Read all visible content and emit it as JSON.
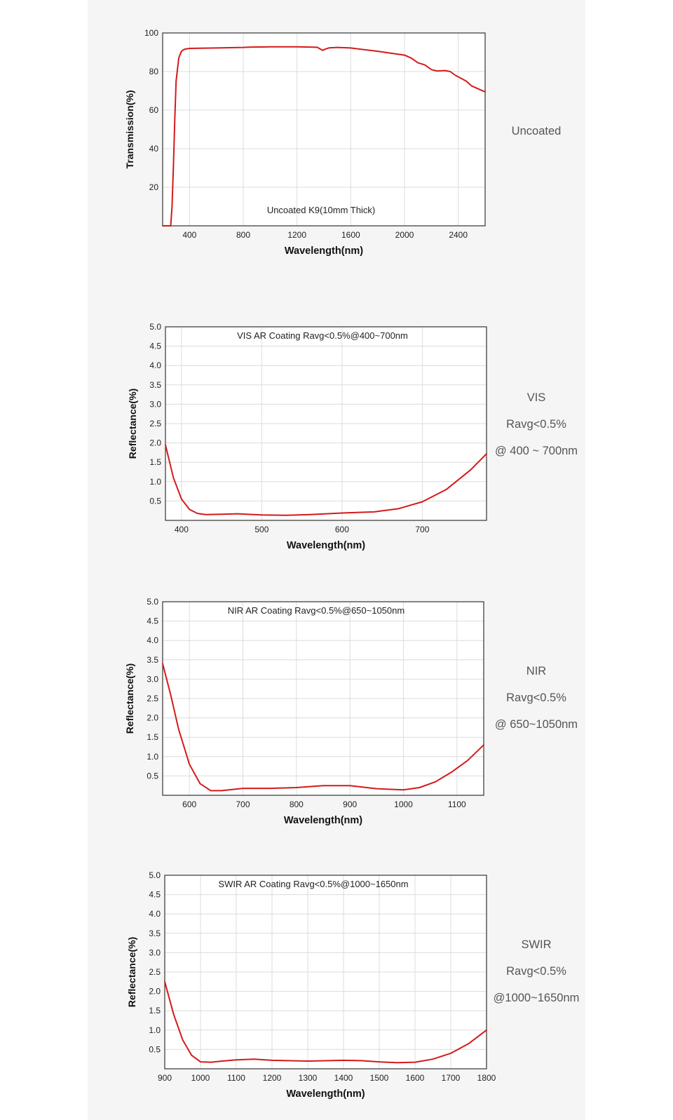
{
  "chart_data": [
    {
      "type": "line",
      "title": "Uncoated K9(10mm Thick)",
      "xlabel": "Wavelength(nm)",
      "ylabel": "Transmission(%)",
      "xlim": [
        200,
        2600
      ],
      "ylim": [
        0,
        100
      ],
      "xticks": [
        "400",
        "800",
        "1200",
        "1600",
        "2000",
        "2400"
      ],
      "yticks": [
        "20",
        "40",
        "60",
        "80",
        "100"
      ],
      "grid": true,
      "series_color": "#d41a1a",
      "side_lines": [
        "Uncoated"
      ],
      "x": [
        200,
        260,
        270,
        280,
        290,
        300,
        320,
        340,
        360,
        380,
        400,
        600,
        800,
        860,
        1000,
        1200,
        1350,
        1390,
        1410,
        1440,
        1500,
        1600,
        1800,
        2000,
        2050,
        2100,
        2150,
        2200,
        2240,
        2300,
        2340,
        2380,
        2420,
        2460,
        2500,
        2550,
        2600
      ],
      "y": [
        0,
        0,
        10,
        30,
        55,
        75,
        87,
        90.5,
        91.5,
        91.8,
        92,
        92.2,
        92.5,
        92.7,
        92.8,
        92.8,
        92.6,
        91,
        91.6,
        92.3,
        92.5,
        92.2,
        90.5,
        88.5,
        87,
        84.5,
        83.5,
        81,
        80.3,
        80.5,
        80,
        78,
        76.5,
        75,
        72.5,
        71,
        69.5
      ]
    },
    {
      "type": "line",
      "title": "VIS AR Coating Ravg<0.5%@400~700nm",
      "xlabel": "Wavelength(nm)",
      "ylabel": "Reflectance(%)",
      "xlim": [
        380,
        780
      ],
      "ylim": [
        0,
        5
      ],
      "xticks": [
        "400",
        "500",
        "600",
        "700"
      ],
      "yticks": [
        "0.5",
        "1.0",
        "1.5",
        "2.0",
        "2.5",
        "3.0",
        "3.5",
        "4.0",
        "4.5",
        "5.0"
      ],
      "grid": true,
      "series_color": "#d41a1a",
      "side_lines": [
        "VIS",
        "Ravg<0.5%",
        "@ 400 ~ 700nm"
      ],
      "x": [
        380,
        390,
        400,
        410,
        420,
        430,
        450,
        470,
        500,
        530,
        560,
        600,
        640,
        670,
        700,
        730,
        760,
        780
      ],
      "y": [
        1.95,
        1.1,
        0.55,
        0.28,
        0.18,
        0.15,
        0.16,
        0.17,
        0.14,
        0.13,
        0.15,
        0.19,
        0.22,
        0.3,
        0.48,
        0.8,
        1.3,
        1.72
      ]
    },
    {
      "type": "line",
      "title": "NIR AR Coating Ravg<0.5%@650~1050nm",
      "xlabel": "Wavelength(nm)",
      "ylabel": "Reflectance(%)",
      "xlim": [
        550,
        1150
      ],
      "ylim": [
        0,
        5
      ],
      "xticks": [
        "600",
        "700",
        "800",
        "900",
        "1000",
        "1100"
      ],
      "yticks": [
        "0.5",
        "1.0",
        "1.5",
        "2.0",
        "2.5",
        "3.0",
        "3.5",
        "4.0",
        "4.5",
        "5.0"
      ],
      "grid": true,
      "series_color": "#d41a1a",
      "side_lines": [
        "NIR",
        "Ravg<0.5%",
        "@ 650~1050nm"
      ],
      "x": [
        550,
        565,
        580,
        600,
        620,
        640,
        660,
        700,
        750,
        800,
        850,
        900,
        950,
        1000,
        1030,
        1060,
        1090,
        1120,
        1150
      ],
      "y": [
        3.4,
        2.6,
        1.7,
        0.8,
        0.3,
        0.12,
        0.12,
        0.18,
        0.18,
        0.2,
        0.25,
        0.25,
        0.17,
        0.14,
        0.2,
        0.35,
        0.6,
        0.9,
        1.3
      ]
    },
    {
      "type": "line",
      "title": "SWIR AR Coating Ravg<0.5%@1000~1650nm",
      "xlabel": "Wavelength(nm)",
      "ylabel": "Reflectance(%)",
      "xlim": [
        900,
        1800
      ],
      "ylim": [
        0,
        5
      ],
      "xticks": [
        "900",
        "1000",
        "1100",
        "1200",
        "1300",
        "1400",
        "1500",
        "1600",
        "1700",
        "1800"
      ],
      "yticks": [
        "0.5",
        "1.0",
        "1.5",
        "2.0",
        "2.5",
        "3.0",
        "3.5",
        "4.0",
        "4.5",
        "5.0"
      ],
      "grid": true,
      "series_color": "#d41a1a",
      "side_lines": [
        "SWIR",
        "Ravg<0.5%",
        "@1000~1650nm"
      ],
      "x": [
        900,
        925,
        950,
        975,
        1000,
        1030,
        1060,
        1100,
        1150,
        1200,
        1300,
        1400,
        1450,
        1500,
        1550,
        1600,
        1650,
        1700,
        1750,
        1800
      ],
      "y": [
        2.25,
        1.4,
        0.75,
        0.35,
        0.18,
        0.17,
        0.2,
        0.23,
        0.25,
        0.22,
        0.2,
        0.22,
        0.21,
        0.18,
        0.16,
        0.17,
        0.25,
        0.4,
        0.65,
        1.0
      ]
    }
  ]
}
